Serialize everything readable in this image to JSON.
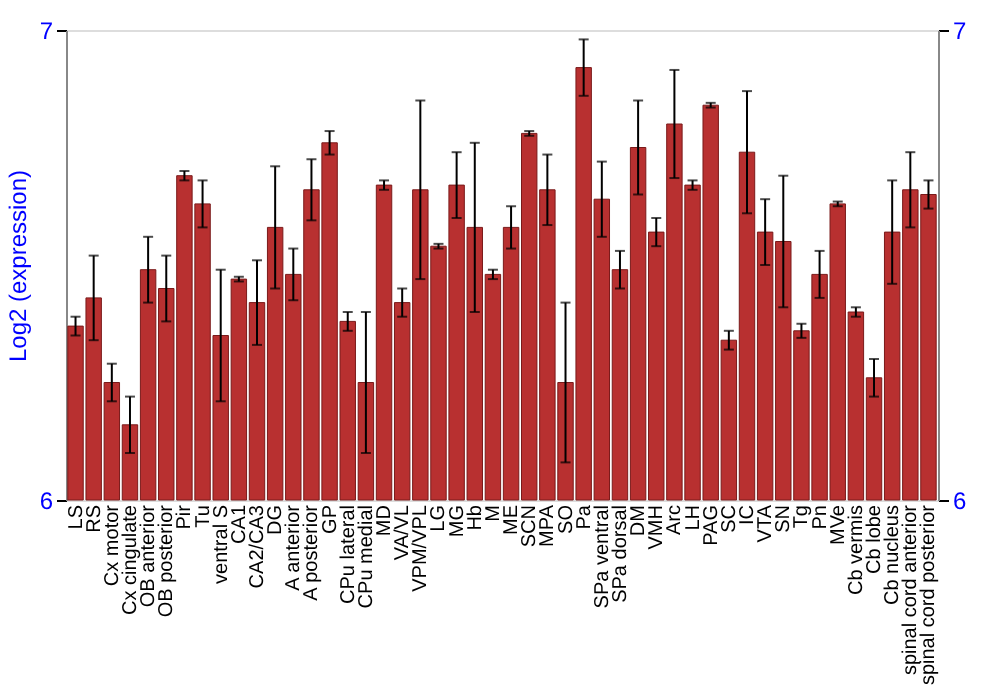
{
  "chart_data": {
    "type": "bar",
    "ylabel": "Log2 (expression)",
    "categories": [
      "LS",
      "RS",
      "Cx motor",
      "Cx cingulate",
      "OB anterior",
      "OB posterior",
      "Pir",
      "Tu",
      "ventral S",
      "CA1",
      "CA2/CA3",
      "DG",
      "A anterior",
      "A posterior",
      "GP",
      "CPu lateral",
      "CPu medial",
      "MD",
      "VA/VL",
      "VPM/VPL",
      "LG",
      "MG",
      "Hb",
      "M",
      "ME",
      "SCN",
      "MPA",
      "SO",
      "Pa",
      "SPa ventral",
      "SPa dorsal",
      "DM",
      "VMH",
      "Arc",
      "LH",
      "PAG",
      "SC",
      "IC",
      "VTA",
      "SN",
      "Tg",
      "Pn",
      "MVe",
      "Cb vermis",
      "Cb lobe",
      "Cb nucleus",
      "spinal cord anterior",
      "spinal cord posterior"
    ],
    "values": [
      6.37,
      6.43,
      6.25,
      6.16,
      6.49,
      6.45,
      6.69,
      6.63,
      6.35,
      6.47,
      6.42,
      6.58,
      6.48,
      6.66,
      6.76,
      6.38,
      6.25,
      6.67,
      6.42,
      6.66,
      6.54,
      6.67,
      6.58,
      6.48,
      6.58,
      6.78,
      6.66,
      6.25,
      6.92,
      6.64,
      6.49,
      6.75,
      6.57,
      6.8,
      6.67,
      6.84,
      6.34,
      6.74,
      6.57,
      6.55,
      6.36,
      6.48,
      6.63,
      6.4,
      6.26,
      6.57,
      6.66,
      6.65
    ],
    "errors": [
      0.02,
      0.09,
      0.04,
      0.06,
      0.07,
      0.07,
      0.01,
      0.05,
      0.14,
      0.005,
      0.09,
      0.13,
      0.055,
      0.065,
      0.025,
      0.02,
      0.15,
      0.01,
      0.03,
      0.19,
      0.005,
      0.07,
      0.18,
      0.01,
      0.045,
      0.005,
      0.075,
      0.17,
      0.06,
      0.08,
      0.04,
      0.1,
      0.03,
      0.115,
      0.01,
      0.005,
      0.02,
      0.13,
      0.07,
      0.14,
      0.015,
      0.05,
      0.005,
      0.01,
      0.04,
      0.11,
      0.08,
      0.03
    ],
    "color": "#b83030",
    "ylim": [
      6,
      7
    ],
    "yticks": [
      6,
      7
    ],
    "y2lim": [
      6,
      7
    ],
    "y2ticks": [
      6,
      7
    ]
  }
}
